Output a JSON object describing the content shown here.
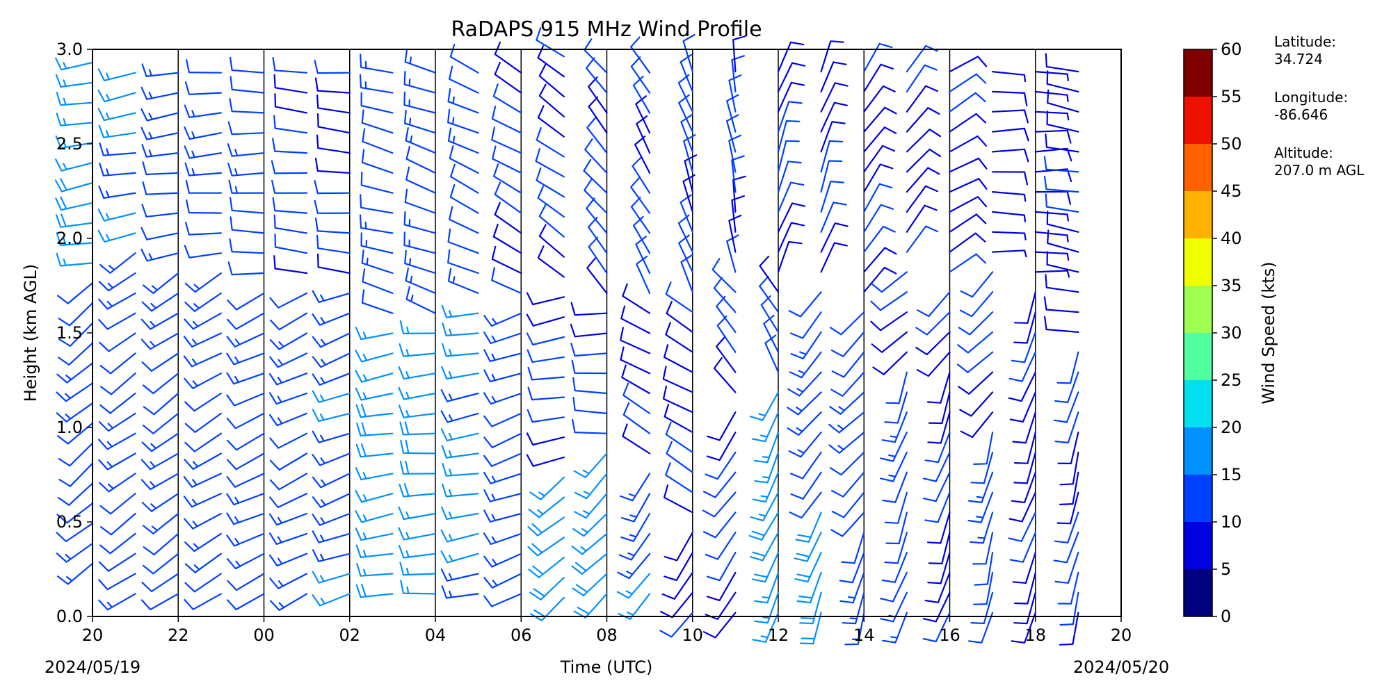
{
  "chart_data": {
    "type": "wind_barb_profile",
    "title": "RaDAPS 915 MHz Wind Profile",
    "xlabel": "Time (UTC)",
    "ylabel": "Height (km AGL)",
    "x_ticks": [
      "20",
      "22",
      "00",
      "02",
      "04",
      "06",
      "08",
      "10",
      "12",
      "14",
      "16",
      "18",
      "20"
    ],
    "x_range_hours": [
      0,
      24
    ],
    "start_date_label": "2024/05/19",
    "end_date_label": "2024/05/20",
    "y_ticks": [
      "0.0",
      "0.5",
      "1.0",
      "1.5",
      "2.0",
      "2.5",
      "3.0"
    ],
    "ylim": [
      0.0,
      3.0
    ],
    "colorbar": {
      "label": "Wind Speed (kts)",
      "ticks": [
        "0",
        "5",
        "10",
        "15",
        "20",
        "25",
        "30",
        "35",
        "40",
        "45",
        "50",
        "55",
        "60"
      ],
      "bin_colors": [
        "#000080",
        "#0000e0",
        "#0040ff",
        "#0090ff",
        "#00e0ef",
        "#50ff9f",
        "#9fff50",
        "#efff00",
        "#ffb000",
        "#ff6000",
        "#ef1000",
        "#800000"
      ]
    },
    "site": {
      "latitude_label": "Latitude:",
      "latitude_value": "34.724",
      "longitude_label": "Longitude:",
      "longitude_value": "-86.646",
      "altitude_label": "Altitude:",
      "altitude_value": "207.0 m AGL"
    },
    "profiles": [
      {
        "hour": 0.0,
        "bottom_km": 0.28,
        "top_km": 3.0,
        "regimes": [
          {
            "to_km": 1.85,
            "dir": 230,
            "spd": 12
          },
          {
            "to_km": 3.0,
            "dir": 260,
            "spd": 17
          }
        ]
      },
      {
        "hour": 1.0,
        "bottom_km": 0.12,
        "top_km": 3.0,
        "regimes": [
          {
            "to_km": 1.95,
            "dir": 235,
            "spd": 12
          },
          {
            "to_km": 3.0,
            "dir": 260,
            "spd": 16
          }
        ]
      },
      {
        "hour": 2.0,
        "bottom_km": 0.12,
        "top_km": 3.0,
        "regimes": [
          {
            "to_km": 1.9,
            "dir": 235,
            "spd": 13
          },
          {
            "to_km": 3.0,
            "dir": 262,
            "spd": 13
          }
        ]
      },
      {
        "hour": 3.0,
        "bottom_km": 0.12,
        "top_km": 3.0,
        "regimes": [
          {
            "to_km": 1.85,
            "dir": 240,
            "spd": 13
          },
          {
            "to_km": 3.0,
            "dir": 265,
            "spd": 12
          }
        ]
      },
      {
        "hour": 4.0,
        "bottom_km": 0.12,
        "top_km": 3.0,
        "regimes": [
          {
            "to_km": 1.8,
            "dir": 245,
            "spd": 12
          },
          {
            "to_km": 3.0,
            "dir": 270,
            "spd": 12
          }
        ]
      },
      {
        "hour": 5.0,
        "bottom_km": 0.12,
        "top_km": 3.0,
        "regimes": [
          {
            "to_km": 1.75,
            "dir": 245,
            "spd": 13
          },
          {
            "to_km": 3.0,
            "dir": 275,
            "spd": 11
          }
        ]
      },
      {
        "hour": 6.0,
        "bottom_km": 0.12,
        "top_km": 3.0,
        "regimes": [
          {
            "to_km": 1.8,
            "dir": 250,
            "spd": 14
          },
          {
            "to_km": 3.0,
            "dir": 275,
            "spd": 10
          }
        ]
      },
      {
        "hour": 7.0,
        "bottom_km": 0.12,
        "top_km": 3.0,
        "regimes": [
          {
            "to_km": 1.6,
            "dir": 260,
            "spd": 17
          },
          {
            "to_km": 3.0,
            "dir": 285,
            "spd": 12
          }
        ]
      },
      {
        "hour": 8.0,
        "bottom_km": 0.12,
        "top_km": 3.0,
        "regimes": [
          {
            "to_km": 1.6,
            "dir": 265,
            "spd": 17
          },
          {
            "to_km": 3.0,
            "dir": 290,
            "spd": 13
          }
        ]
      },
      {
        "hour": 9.0,
        "bottom_km": 0.12,
        "top_km": 3.0,
        "regimes": [
          {
            "to_km": 1.65,
            "dir": 260,
            "spd": 16
          },
          {
            "to_km": 3.0,
            "dir": 295,
            "spd": 12
          }
        ]
      },
      {
        "hour": 10.0,
        "bottom_km": 0.12,
        "top_km": 3.0,
        "regimes": [
          {
            "to_km": 1.7,
            "dir": 250,
            "spd": 13
          },
          {
            "to_km": 3.0,
            "dir": 300,
            "spd": 11
          }
        ]
      },
      {
        "hour": 11.0,
        "bottom_km": 0.1,
        "top_km": 3.0,
        "regimes": [
          {
            "to_km": 0.8,
            "dir": 230,
            "spd": 18
          },
          {
            "to_km": 1.7,
            "dir": 260,
            "spd": 10
          },
          {
            "to_km": 3.0,
            "dir": 305,
            "spd": 10
          }
        ]
      },
      {
        "hour": 12.0,
        "bottom_km": 0.12,
        "top_km": 3.0,
        "regimes": [
          {
            "to_km": 0.9,
            "dir": 225,
            "spd": 17
          },
          {
            "to_km": 1.7,
            "dir": 270,
            "spd": 10
          },
          {
            "to_km": 3.0,
            "dir": 320,
            "spd": 11
          }
        ]
      },
      {
        "hour": 13.0,
        "bottom_km": 0.12,
        "top_km": 3.0,
        "regimes": [
          {
            "to_km": 0.8,
            "dir": 215,
            "spd": 15
          },
          {
            "to_km": 1.7,
            "dir": 300,
            "spd": 9
          },
          {
            "to_km": 3.0,
            "dir": 330,
            "spd": 11
          }
        ]
      },
      {
        "hour": 14.0,
        "bottom_km": 0.02,
        "top_km": 3.0,
        "regimes": [
          {
            "to_km": 0.5,
            "dir": 215,
            "spd": 10
          },
          {
            "to_km": 1.7,
            "dir": 300,
            "spd": 9
          },
          {
            "to_km": 3.0,
            "dir": 340,
            "spd": 11
          }
        ]
      },
      {
        "hour": 15.0,
        "bottom_km": 0.02,
        "top_km": 3.0,
        "regimes": [
          {
            "to_km": 1.1,
            "dir": 215,
            "spd": 11
          },
          {
            "to_km": 1.8,
            "dir": 320,
            "spd": 10
          },
          {
            "to_km": 3.0,
            "dir": 350,
            "spd": 11
          }
        ]
      },
      {
        "hour": 16.0,
        "bottom_km": 0.02,
        "top_km": 3.0,
        "regimes": [
          {
            "to_km": 1.2,
            "dir": 205,
            "spd": 17
          },
          {
            "to_km": 1.8,
            "dir": 330,
            "spd": 10
          },
          {
            "to_km": 3.0,
            "dir": 20,
            "spd": 10
          }
        ]
      },
      {
        "hour": 17.0,
        "bottom_km": 0.02,
        "top_km": 3.0,
        "regimes": [
          {
            "to_km": 0.6,
            "dir": 200,
            "spd": 18
          },
          {
            "to_km": 1.8,
            "dir": 220,
            "spd": 13
          },
          {
            "to_km": 3.0,
            "dir": 20,
            "spd": 10
          }
        ]
      },
      {
        "hour": 18.0,
        "bottom_km": 0.02,
        "top_km": 3.0,
        "regimes": [
          {
            "to_km": 0.5,
            "dir": 195,
            "spd": 12
          },
          {
            "to_km": 1.7,
            "dir": 225,
            "spd": 12
          },
          {
            "to_km": 3.0,
            "dir": 35,
            "spd": 9
          }
        ]
      },
      {
        "hour": 19.0,
        "bottom_km": 0.02,
        "top_km": 3.0,
        "regimes": [
          {
            "to_km": 1.3,
            "dir": 200,
            "spd": 12
          },
          {
            "to_km": 1.9,
            "dir": 230,
            "spd": 10
          },
          {
            "to_km": 3.0,
            "dir": 40,
            "spd": 9
          }
        ]
      },
      {
        "hour": 20.0,
        "bottom_km": 0.02,
        "top_km": 3.0,
        "regimes": [
          {
            "to_km": 1.3,
            "dir": 200,
            "spd": 10
          },
          {
            "to_km": 1.8,
            "dir": 220,
            "spd": 10
          },
          {
            "to_km": 3.0,
            "dir": 60,
            "spd": 9
          }
        ]
      },
      {
        "hour": 21.0,
        "bottom_km": 0.02,
        "top_km": 3.0,
        "regimes": [
          {
            "to_km": 1.0,
            "dir": 195,
            "spd": 12
          },
          {
            "to_km": 1.9,
            "dir": 225,
            "spd": 10
          },
          {
            "to_km": 3.0,
            "dir": 90,
            "spd": 8
          }
        ]
      },
      {
        "hour": 22.0,
        "bottom_km": 0.02,
        "top_km": 3.0,
        "regimes": [
          {
            "to_km": 1.8,
            "dir": 200,
            "spd": 9
          },
          {
            "to_km": 2.9,
            "dir": 90,
            "spd": 7
          },
          {
            "to_km": 3.0,
            "dir": 0,
            "spd": 0
          }
        ]
      },
      {
        "hour": 23.0,
        "bottom_km": 0.02,
        "top_km": 3.0,
        "regimes": [
          {
            "to_km": 1.5,
            "dir": 195,
            "spd": 10
          },
          {
            "to_km": 3.0,
            "dir": 280,
            "spd": 9
          }
        ]
      }
    ]
  }
}
